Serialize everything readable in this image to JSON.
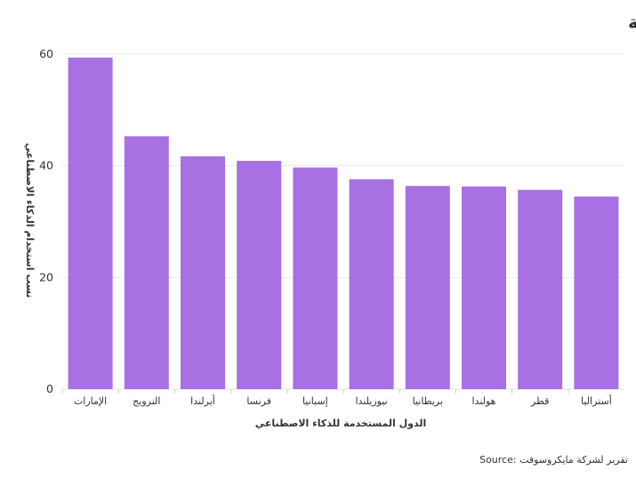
{
  "chart_data": {
    "type": "bar",
    "title": "نسب استخدام الدول للذكاء الاصطناعي - المقياس النسب المئوية",
    "xlabel": "الدول المستخدمة للذكاء الاصطناعي",
    "ylabel": "نسب استخدام الذكاء الاصطناعي",
    "categories": [
      "الإمارات",
      "النرويج",
      "أيرلندا",
      "فرنسا",
      "إسبانيا",
      "نيوزيلندا",
      "بريطانيا",
      "هولندا",
      "قطر",
      "أستراليا"
    ],
    "values": [
      59.4,
      45.3,
      41.7,
      40.9,
      39.7,
      37.6,
      36.4,
      36.3,
      35.7,
      34.5
    ],
    "ylim": [
      0,
      60
    ],
    "yticks": [
      0,
      20,
      40,
      60
    ],
    "grid": true,
    "legend": "none",
    "bar_color": "#a770e3"
  },
  "source": "Source: تقرير لشركة مايكروسوفت"
}
